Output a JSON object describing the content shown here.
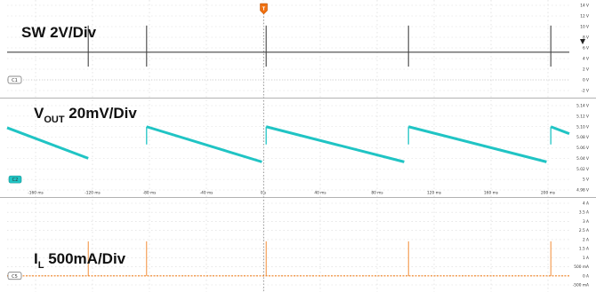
{
  "chart_data": [
    {
      "type": "line",
      "title": "SW 2V/Div",
      "channel": "C1",
      "color": "#444444",
      "yticks": [
        "14 V",
        "12 V",
        "10 V",
        "8 V",
        "6 V",
        "4 V",
        "2 V",
        "0 V",
        "-2 V"
      ],
      "yvalues": [
        14,
        12,
        10,
        8,
        6,
        4,
        2,
        0,
        -2
      ],
      "baseline_v": 5.2,
      "spike_times_ms": [
        -123,
        -82,
        2,
        102,
        202
      ]
    },
    {
      "type": "line",
      "title_main": "V",
      "title_sub": "OUT",
      "title_rest": " 20mV/Div",
      "channel": "C2",
      "color": "#20c4c4",
      "yticks": [
        "5.14 V",
        "5.12 V",
        "5.10 V",
        "5.08 V",
        "5.06 V",
        "5.04 V",
        "5.02 V",
        "5 V",
        "4.98 V"
      ],
      "yvalues": [
        5.14,
        5.12,
        5.1,
        5.08,
        5.06,
        5.04,
        5.02,
        5.0,
        4.98
      ],
      "ramp_top_v": 5.1,
      "ramp_bottom_v": 5.04,
      "ramp_starts_ms": [
        -180,
        -82,
        2,
        102,
        202
      ],
      "ramp_ends_ms": [
        -123,
        -82,
        2,
        102,
        202
      ]
    },
    {
      "type": "line",
      "title_main": "I",
      "title_sub": "L",
      "title_rest": " 500mA/Div",
      "channel": "C5",
      "color": "#f08020",
      "yticks": [
        "4 A",
        "3.5 A",
        "3 A",
        "2.5 A",
        "2 A",
        "1.5 A",
        "1 A",
        "500 mA",
        "0 A",
        "-500 mA"
      ],
      "yvalues": [
        4,
        3.5,
        3,
        2.5,
        2,
        1.5,
        1,
        0.5,
        0,
        -0.5
      ],
      "baseline_a": 0,
      "pulse_peak_a": 1.9,
      "pulse_times_ms": [
        -123,
        -82,
        2,
        102,
        202
      ]
    }
  ],
  "x_axis": {
    "ticks": [
      "-160 ms",
      "-120 ms",
      "-80 ms",
      "-40 ms",
      "0 s",
      "40 ms",
      "80 ms",
      "120 ms",
      "160 ms",
      "200 ms"
    ],
    "values": [
      -160,
      -120,
      -80,
      -40,
      0,
      40,
      80,
      120,
      160,
      200
    ],
    "range_ms": [
      -180,
      215
    ]
  },
  "trigger": {
    "label": "T",
    "time_ms": 0
  },
  "cursor_marker": {
    "label": "Δ"
  }
}
